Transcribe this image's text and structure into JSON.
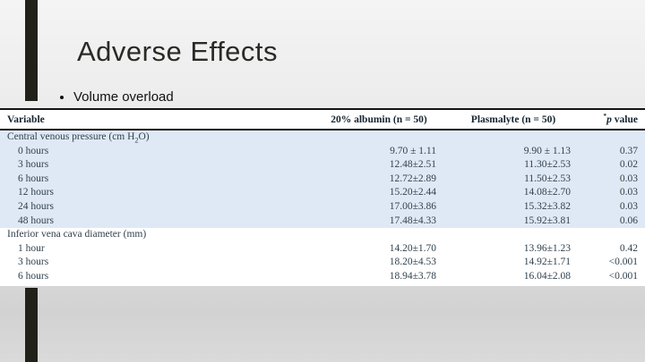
{
  "slide": {
    "title": "Adverse Effects",
    "bullet": "Volume overload"
  },
  "table": {
    "headers": {
      "variable": "Variable",
      "albumin": "20% albumin (n = 50)",
      "plasmalyte": "Plasmalyte (n = 50)",
      "pvalue_sup": "*",
      "pvalue_italic": "p",
      "pvalue_rest": " value"
    },
    "sections": [
      {
        "label_pre": "Central venous pressure (cm H",
        "label_sub": "2",
        "label_post": "O)",
        "rows": [
          {
            "variable": "0 hours",
            "albumin": "9.70 ± 1.11",
            "plasmalyte": "9.90 ± 1.13",
            "p": "0.37"
          },
          {
            "variable": "3 hours",
            "albumin": "12.48±2.51",
            "plasmalyte": "11.30±2.53",
            "p": "0.02"
          },
          {
            "variable": "6 hours",
            "albumin": "12.72±2.89",
            "plasmalyte": "11.50±2.53",
            "p": "0.03"
          },
          {
            "variable": "12 hours",
            "albumin": "15.20±2.44",
            "plasmalyte": "14.08±2.70",
            "p": "0.03"
          },
          {
            "variable": "24 hours",
            "albumin": "17.00±3.86",
            "plasmalyte": "15.32±3.82",
            "p": "0.03"
          },
          {
            "variable": "48 hours",
            "albumin": "17.48±4.33",
            "plasmalyte": "15.92±3.81",
            "p": "0.06"
          }
        ]
      },
      {
        "label_pre": "Inferior vena cava diameter (mm)",
        "label_sub": "",
        "label_post": "",
        "rows": [
          {
            "variable": "1 hour",
            "albumin": "14.20±1.70",
            "plasmalyte": "13.96±1.23",
            "p": "0.42"
          },
          {
            "variable": "3 hours",
            "albumin": "18.20±4.53",
            "plasmalyte": "14.92±1.71",
            "p": "<0.001"
          },
          {
            "variable": "6 hours",
            "albumin": "18.94±3.78",
            "plasmalyte": "16.04±2.08",
            "p": "<0.001"
          }
        ]
      }
    ]
  },
  "colors": {
    "accent_bar": "#21211a",
    "section_highlight": "#dfe9f5",
    "table_text": "#31414d",
    "table_header_text": "#15232e",
    "rule_color": "#141414",
    "title_color": "#2a2a26"
  }
}
